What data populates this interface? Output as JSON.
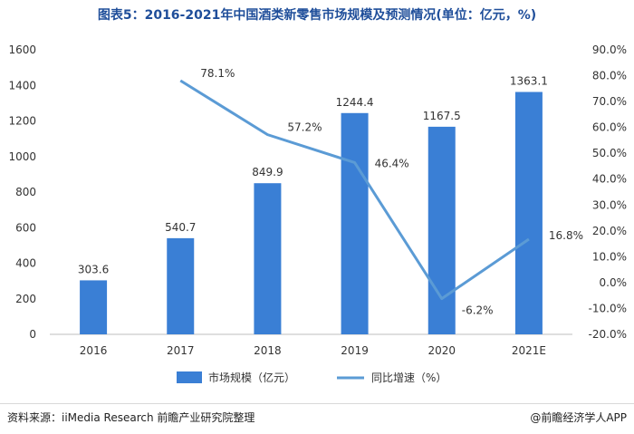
{
  "chart_data": {
    "type": "bar",
    "title": "图表5：2016-2021年中国酒类新零售市场规模及预测情况(单位：亿元，%)",
    "categories": [
      "2016",
      "2017",
      "2018",
      "2019",
      "2020",
      "2021E"
    ],
    "series": [
      {
        "name": "市场规模（亿元）",
        "type": "bar",
        "axis": "left",
        "values": [
          303.6,
          540.7,
          849.9,
          1244.4,
          1167.5,
          1363.1
        ],
        "labels": [
          "303.6",
          "540.7",
          "849.9",
          "1244.4",
          "1167.5",
          "1363.1"
        ]
      },
      {
        "name": "同比增速（%）",
        "type": "line",
        "axis": "right",
        "values": [
          null,
          78.1,
          57.2,
          46.4,
          -6.2,
          16.8
        ],
        "labels": [
          "",
          "78.1%",
          "57.2%",
          "46.4%",
          "-6.2%",
          "16.8%"
        ]
      }
    ],
    "ylim_left": [
      0,
      1600
    ],
    "yticks_left": [
      "0",
      "200",
      "400",
      "600",
      "800",
      "1000",
      "1200",
      "1400",
      "1600"
    ],
    "ylim_right": [
      -20,
      90
    ],
    "yticks_right": [
      "-20.0%",
      "-10.0%",
      "0.0%",
      "10.0%",
      "20.0%",
      "30.0%",
      "40.0%",
      "50.0%",
      "60.0%",
      "70.0%",
      "80.0%",
      "90.0%"
    ],
    "legend_position": "bottom",
    "grid": false
  },
  "colors": {
    "bar": "#3a7fd5",
    "line": "#5b9bd5",
    "title": "#1f4e9a"
  },
  "footer": {
    "source": "资料来源：iiMedia Research 前瞻产业研究院整理",
    "brand": "@前瞻经济学人APP"
  }
}
